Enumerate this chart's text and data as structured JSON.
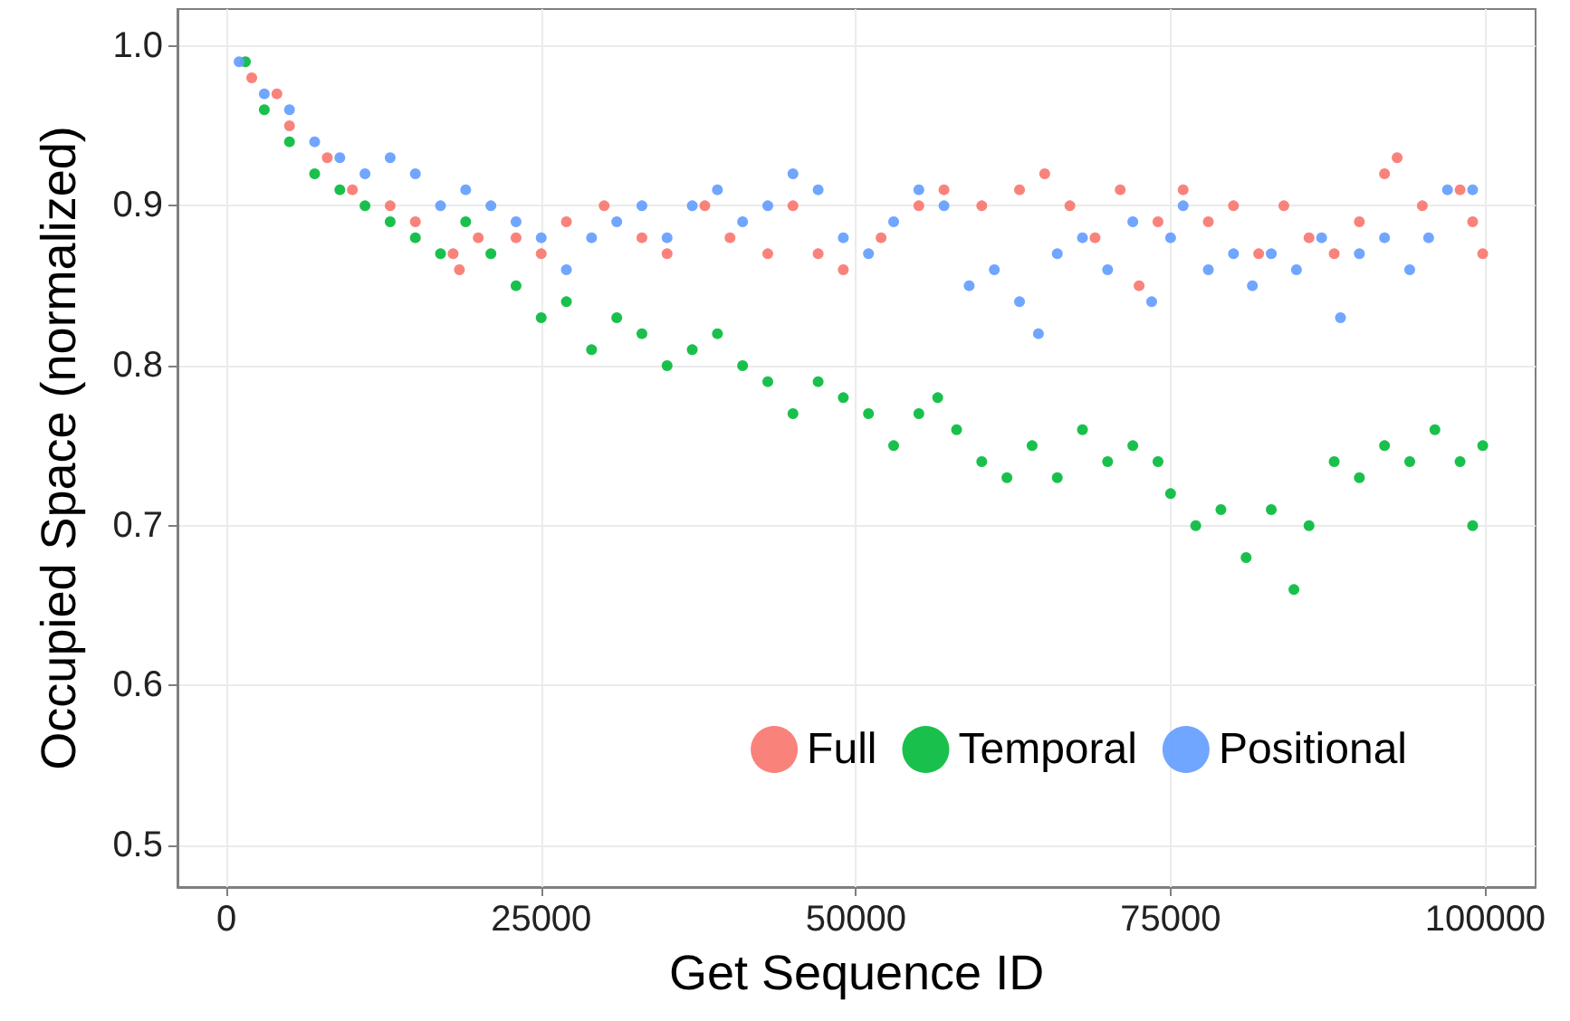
{
  "chart_data": {
    "type": "scatter",
    "xlabel": "Get Sequence ID",
    "ylabel": "Occupied Space (normalized)",
    "xlim": [
      -3900,
      104000
    ],
    "ylim": [
      0.474,
      1.023
    ],
    "xticks": [
      0,
      25000,
      50000,
      75000,
      100000
    ],
    "yticks": [
      0.5,
      0.6,
      0.7,
      0.8,
      0.9,
      {
        "value": 1.0,
        "label": "1.0"
      }
    ],
    "grid": true,
    "legend": "bottom right",
    "marker": "circle",
    "series": [
      {
        "name": "Full",
        "color": "#f8766d",
        "x": [
          2000,
          4000,
          5000,
          8000,
          10000,
          13000,
          15000,
          18000,
          18500,
          20000,
          23000,
          25000,
          27000,
          30000,
          33000,
          35000,
          38000,
          40000,
          43000,
          45000,
          47000,
          49000,
          52000,
          55000,
          57000,
          60000,
          63000,
          65000,
          67000,
          69000,
          71000,
          72500,
          74000,
          76000,
          78000,
          80000,
          82000,
          84000,
          86000,
          88000,
          90000,
          92000,
          93000,
          95000,
          98000,
          99000,
          99800
        ],
        "values": [
          0.98,
          0.97,
          0.95,
          0.93,
          0.91,
          0.9,
          0.89,
          0.87,
          0.86,
          0.88,
          0.88,
          0.87,
          0.89,
          0.9,
          0.88,
          0.87,
          0.9,
          0.88,
          0.87,
          0.9,
          0.87,
          0.86,
          0.88,
          0.9,
          0.91,
          0.9,
          0.91,
          0.92,
          0.9,
          0.88,
          0.91,
          0.85,
          0.89,
          0.91,
          0.89,
          0.9,
          0.87,
          0.9,
          0.88,
          0.87,
          0.89,
          0.92,
          0.93,
          0.9,
          0.91,
          0.89,
          0.87
        ]
      },
      {
        "name": "Temporal",
        "color": "#00ba38",
        "x": [
          1500,
          3000,
          5000,
          7000,
          9000,
          11000,
          13000,
          15000,
          17000,
          19000,
          21000,
          23000,
          25000,
          27000,
          29000,
          31000,
          33000,
          35000,
          37000,
          39000,
          41000,
          43000,
          45000,
          47000,
          49000,
          51000,
          53000,
          55000,
          56500,
          58000,
          60000,
          62000,
          64000,
          66000,
          68000,
          70000,
          72000,
          74000,
          75000,
          77000,
          79000,
          81000,
          83000,
          84800,
          86000,
          88000,
          90000,
          92000,
          94000,
          96000,
          98000,
          99000,
          99800
        ],
        "values": [
          0.99,
          0.96,
          0.94,
          0.92,
          0.91,
          0.9,
          0.89,
          0.88,
          0.87,
          0.89,
          0.87,
          0.85,
          0.83,
          0.84,
          0.81,
          0.83,
          0.82,
          0.8,
          0.81,
          0.82,
          0.8,
          0.79,
          0.77,
          0.79,
          0.78,
          0.77,
          0.75,
          0.77,
          0.78,
          0.76,
          0.74,
          0.73,
          0.75,
          0.73,
          0.76,
          0.74,
          0.75,
          0.74,
          0.72,
          0.7,
          0.71,
          0.68,
          0.71,
          0.66,
          0.7,
          0.74,
          0.73,
          0.75,
          0.74,
          0.76,
          0.74,
          0.7,
          0.75
        ]
      },
      {
        "name": "Positional",
        "color": "#619cff",
        "x": [
          1000,
          3000,
          5000,
          7000,
          9000,
          11000,
          13000,
          15000,
          17000,
          19000,
          21000,
          23000,
          25000,
          27000,
          29000,
          31000,
          33000,
          35000,
          37000,
          39000,
          41000,
          43000,
          45000,
          47000,
          49000,
          51000,
          53000,
          55000,
          57000,
          59000,
          61000,
          63000,
          64500,
          66000,
          68000,
          70000,
          72000,
          73500,
          75000,
          76000,
          78000,
          80000,
          81500,
          83000,
          85000,
          87000,
          88500,
          90000,
          92000,
          94000,
          95500,
          97000,
          99000
        ],
        "values": [
          0.99,
          0.97,
          0.96,
          0.94,
          0.93,
          0.92,
          0.93,
          0.92,
          0.9,
          0.91,
          0.9,
          0.89,
          0.88,
          0.86,
          0.88,
          0.89,
          0.9,
          0.88,
          0.9,
          0.91,
          0.89,
          0.9,
          0.92,
          0.91,
          0.88,
          0.87,
          0.89,
          0.91,
          0.9,
          0.85,
          0.86,
          0.84,
          0.82,
          0.87,
          0.88,
          0.86,
          0.89,
          0.84,
          0.88,
          0.9,
          0.86,
          0.87,
          0.85,
          0.87,
          0.86,
          0.88,
          0.83,
          0.87,
          0.88,
          0.86,
          0.88,
          0.91,
          0.91
        ]
      }
    ]
  }
}
